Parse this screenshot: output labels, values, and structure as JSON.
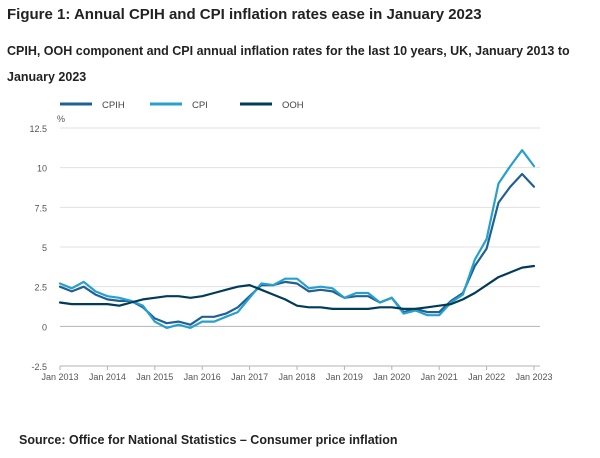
{
  "title": "Figure 1: Annual CPIH and CPI inflation rates ease in January 2023",
  "subtitle": "CPIH, OOH component and CPI annual inflation rates for the last 10 years, UK, January 2013 to January 2023",
  "source": "Source: Office for National Statistics – Consumer price inflation",
  "chart_data": {
    "type": "line",
    "yunit": "%",
    "ylim": [
      -2.5,
      12.5
    ],
    "yticks": [
      -2.5,
      0,
      2.5,
      5,
      7.5,
      10,
      12.5
    ],
    "ytick_labels": [
      "-2.5",
      "0",
      "2.5",
      "5",
      "7.5",
      "10",
      "12.5"
    ],
    "xlim": [
      "Jan 2013",
      "Jan 2023"
    ],
    "xticks": [
      "Jan 2013",
      "Jan 2014",
      "Jan 2015",
      "Jan 2016",
      "Jan 2017",
      "Jan 2018",
      "Jan 2019",
      "Jan 2020",
      "Jan 2021",
      "Jan 2022",
      "Jan 2023"
    ],
    "grid": "horizontal",
    "legend_position": "top-left",
    "series": [
      {
        "name": "CPIH",
        "color": "#206095",
        "points": [
          [
            "Jan 2013",
            2.5
          ],
          [
            "Apr 2013",
            2.2
          ],
          [
            "Jul 2013",
            2.5
          ],
          [
            "Oct 2013",
            2.0
          ],
          [
            "Jan 2014",
            1.7
          ],
          [
            "Apr 2014",
            1.6
          ],
          [
            "Jul 2014",
            1.6
          ],
          [
            "Oct 2014",
            1.2
          ],
          [
            "Jan 2015",
            0.5
          ],
          [
            "Apr 2015",
            0.2
          ],
          [
            "Jul 2015",
            0.3
          ],
          [
            "Oct 2015",
            0.1
          ],
          [
            "Jan 2016",
            0.6
          ],
          [
            "Apr 2016",
            0.6
          ],
          [
            "Jul 2016",
            0.8
          ],
          [
            "Oct 2016",
            1.2
          ],
          [
            "Jan 2017",
            1.9
          ],
          [
            "Apr 2017",
            2.6
          ],
          [
            "Jul 2017",
            2.6
          ],
          [
            "Oct 2017",
            2.8
          ],
          [
            "Jan 2018",
            2.7
          ],
          [
            "Apr 2018",
            2.2
          ],
          [
            "Jul 2018",
            2.3
          ],
          [
            "Oct 2018",
            2.2
          ],
          [
            "Jan 2019",
            1.8
          ],
          [
            "Apr 2019",
            1.9
          ],
          [
            "Jul 2019",
            1.9
          ],
          [
            "Oct 2019",
            1.5
          ],
          [
            "Jan 2020",
            1.8
          ],
          [
            "Apr 2020",
            0.9
          ],
          [
            "Jul 2020",
            1.1
          ],
          [
            "Oct 2020",
            0.9
          ],
          [
            "Jan 2021",
            0.9
          ],
          [
            "Apr 2021",
            1.6
          ],
          [
            "Jul 2021",
            2.1
          ],
          [
            "Oct 2021",
            3.8
          ],
          [
            "Jan 2022",
            4.9
          ],
          [
            "Apr 2022",
            7.8
          ],
          [
            "Jul 2022",
            8.8
          ],
          [
            "Oct 2022",
            9.6
          ],
          [
            "Jan 2023",
            8.8
          ]
        ]
      },
      {
        "name": "CPI",
        "color": "#27a0cc",
        "points": [
          [
            "Jan 2013",
            2.7
          ],
          [
            "Apr 2013",
            2.4
          ],
          [
            "Jul 2013",
            2.8
          ],
          [
            "Oct 2013",
            2.2
          ],
          [
            "Jan 2014",
            1.9
          ],
          [
            "Apr 2014",
            1.8
          ],
          [
            "Jul 2014",
            1.6
          ],
          [
            "Oct 2014",
            1.3
          ],
          [
            "Jan 2015",
            0.3
          ],
          [
            "Apr 2015",
            -0.1
          ],
          [
            "Jul 2015",
            0.1
          ],
          [
            "Oct 2015",
            -0.1
          ],
          [
            "Jan 2016",
            0.3
          ],
          [
            "Apr 2016",
            0.3
          ],
          [
            "Jul 2016",
            0.6
          ],
          [
            "Oct 2016",
            0.9
          ],
          [
            "Jan 2017",
            1.8
          ],
          [
            "Apr 2017",
            2.7
          ],
          [
            "Jul 2017",
            2.6
          ],
          [
            "Oct 2017",
            3.0
          ],
          [
            "Jan 2018",
            3.0
          ],
          [
            "Apr 2018",
            2.4
          ],
          [
            "Jul 2018",
            2.5
          ],
          [
            "Oct 2018",
            2.4
          ],
          [
            "Jan 2019",
            1.8
          ],
          [
            "Apr 2019",
            2.1
          ],
          [
            "Jul 2019",
            2.1
          ],
          [
            "Oct 2019",
            1.5
          ],
          [
            "Jan 2020",
            1.8
          ],
          [
            "Apr 2020",
            0.8
          ],
          [
            "Jul 2020",
            1.0
          ],
          [
            "Oct 2020",
            0.7
          ],
          [
            "Jan 2021",
            0.7
          ],
          [
            "Apr 2021",
            1.5
          ],
          [
            "Jul 2021",
            2.0
          ],
          [
            "Oct 2021",
            4.2
          ],
          [
            "Jan 2022",
            5.5
          ],
          [
            "Apr 2022",
            9.0
          ],
          [
            "Jul 2022",
            10.1
          ],
          [
            "Oct 2022",
            11.1
          ],
          [
            "Jan 2023",
            10.1
          ]
        ]
      },
      {
        "name": "OOH",
        "color": "#003c57",
        "points": [
          [
            "Jan 2013",
            1.5
          ],
          [
            "Apr 2013",
            1.4
          ],
          [
            "Jul 2013",
            1.4
          ],
          [
            "Oct 2013",
            1.4
          ],
          [
            "Jan 2014",
            1.4
          ],
          [
            "Apr 2014",
            1.3
          ],
          [
            "Jul 2014",
            1.5
          ],
          [
            "Oct 2014",
            1.7
          ],
          [
            "Jan 2015",
            1.8
          ],
          [
            "Apr 2015",
            1.9
          ],
          [
            "Jul 2015",
            1.9
          ],
          [
            "Oct 2015",
            1.8
          ],
          [
            "Jan 2016",
            1.9
          ],
          [
            "Apr 2016",
            2.1
          ],
          [
            "Jul 2016",
            2.3
          ],
          [
            "Oct 2016",
            2.5
          ],
          [
            "Jan 2017",
            2.6
          ],
          [
            "Apr 2017",
            2.3
          ],
          [
            "Jul 2017",
            2.0
          ],
          [
            "Oct 2017",
            1.7
          ],
          [
            "Jan 2018",
            1.3
          ],
          [
            "Apr 2018",
            1.2
          ],
          [
            "Jul 2018",
            1.2
          ],
          [
            "Oct 2018",
            1.1
          ],
          [
            "Jan 2019",
            1.1
          ],
          [
            "Apr 2019",
            1.1
          ],
          [
            "Jul 2019",
            1.1
          ],
          [
            "Oct 2019",
            1.2
          ],
          [
            "Jan 2020",
            1.2
          ],
          [
            "Apr 2020",
            1.1
          ],
          [
            "Jul 2020",
            1.1
          ],
          [
            "Oct 2020",
            1.2
          ],
          [
            "Jan 2021",
            1.3
          ],
          [
            "Apr 2021",
            1.4
          ],
          [
            "Jul 2021",
            1.7
          ],
          [
            "Oct 2021",
            2.1
          ],
          [
            "Jan 2022",
            2.6
          ],
          [
            "Apr 2022",
            3.1
          ],
          [
            "Jul 2022",
            3.4
          ],
          [
            "Oct 2022",
            3.7
          ],
          [
            "Jan 2023",
            3.8
          ]
        ]
      }
    ]
  }
}
